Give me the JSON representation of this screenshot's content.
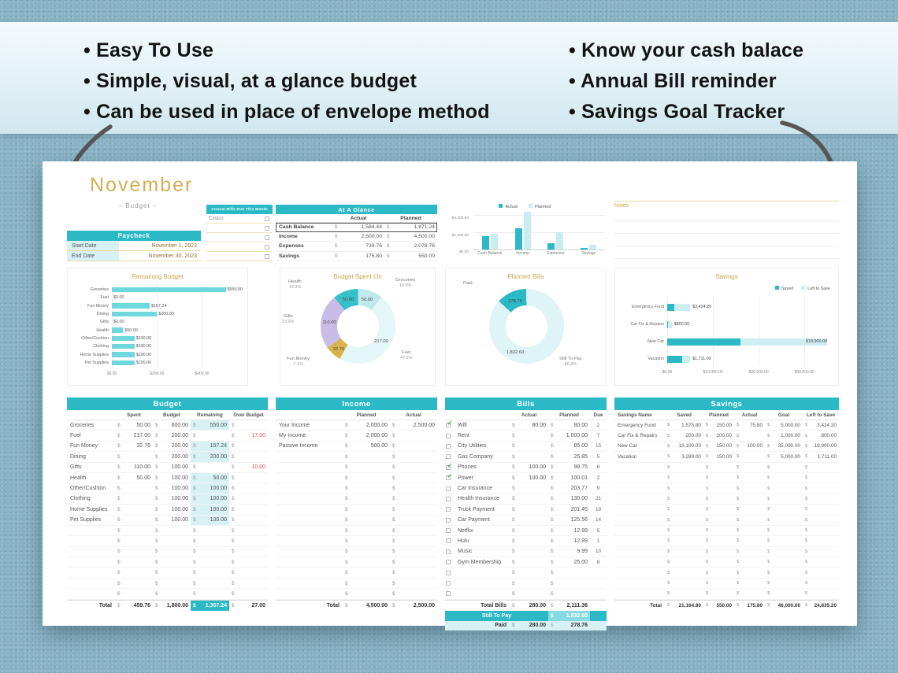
{
  "banner": {
    "left_bullets": [
      "Easy To Use",
      "Simple, visual, at a glance budget",
      "Can be used in place of envelope method"
    ],
    "right_bullets": [
      "Know your cash balace",
      "Annual Bill reminder",
      "Savings Goal Tracker"
    ]
  },
  "colors": {
    "teal": "#2bb9c6",
    "teal_light": "#d7f1f4",
    "gold": "#c9a64d",
    "red": "#e05252",
    "green": "#3aa745",
    "purple": "#c9bce6"
  },
  "sheet": {
    "month": "November",
    "subtitle": "– Budget –",
    "paycheck": {
      "title": "Paycheck",
      "rows": [
        {
          "label": "Start Date",
          "value": "November 1, 2023"
        },
        {
          "label": "End Date",
          "value": "November 30, 2023"
        }
      ]
    },
    "annual_bills": {
      "title": "Annual Bills Due This Month",
      "items": [
        "Costco",
        "",
        "",
        "",
        ""
      ]
    },
    "at_a_glance": {
      "title": "At A Glance",
      "col_actual": "Actual",
      "col_planned": "Planned",
      "rows": [
        {
          "label": "Cash Balance",
          "actual": "1,584.44",
          "planned": "1,871.24"
        },
        {
          "label": "Income",
          "actual": "2,500.00",
          "planned": "4,500.00"
        },
        {
          "label": "Expenses",
          "actual": "739.76",
          "planned": "2,078.76"
        },
        {
          "label": "Savings",
          "actual": "175.80",
          "planned": "550.00"
        }
      ]
    },
    "notes_title": "Notes"
  },
  "chart_data": [
    {
      "name": "at_a_glance_chart",
      "type": "bar",
      "legend": [
        "Actual",
        "Planned"
      ],
      "categories": [
        "Cash Balance",
        "Income",
        "Expenses",
        "Savings"
      ],
      "series": [
        {
          "name": "Actual",
          "values": [
            1584.44,
            2500.0,
            739.76,
            175.8
          ]
        },
        {
          "name": "Planned",
          "values": [
            1871.24,
            4500.0,
            2078.76,
            550.0
          ]
        }
      ],
      "ymax": 4500,
      "yticks": [
        {
          "label": "$4,000.00",
          "value": 4000
        },
        {
          "label": "$2,000.00",
          "value": 2000
        },
        {
          "label": "$0.00",
          "value": 0
        }
      ]
    },
    {
      "name": "remaining_budget",
      "type": "bar",
      "title": "Remaining Budget",
      "categories": [
        "Groceries",
        "Fuel",
        "Fun Money",
        "Dining",
        "Gifts",
        "Health",
        "Other/Cushion",
        "Clothing",
        "Home Supplies",
        "Pet Supplies"
      ],
      "values": [
        550,
        0,
        167.24,
        200,
        0,
        50,
        100,
        100,
        100,
        100
      ],
      "value_labels": [
        "$550.00",
        "$0.00",
        "$167.24",
        "$200.00",
        "$0.00",
        "$50.00",
        "$100.00",
        "$100.00",
        "$100.00",
        "$100.00"
      ],
      "xmax": 580,
      "xticks": [
        {
          "label": "$0.00",
          "value": 0
        },
        {
          "label": "$200.00",
          "value": 200
        },
        {
          "label": "$400.00",
          "value": 400
        }
      ]
    },
    {
      "name": "budget_spent_on",
      "type": "pie",
      "title": "Budget Spent On",
      "slices": [
        {
          "name": "Groceries",
          "value": 50.0,
          "value_label": "50.00",
          "pct": 10.9,
          "pct_label": "10.9%",
          "color": "#bfe9ec"
        },
        {
          "name": "Fuel",
          "value": 217.0,
          "value_label": "217.00",
          "pct": 47.2,
          "pct_label": "47.2%",
          "color": "#e4f6f7"
        },
        {
          "name": "Fun Money",
          "value": 32.76,
          "value_label": "32.76",
          "pct": 7.1,
          "pct_label": "7.1%",
          "color": "#d8b54c"
        },
        {
          "name": "Gifts",
          "value": 110.0,
          "value_label": "110.00",
          "pct": 23.9,
          "pct_label": "23.9%",
          "color": "#c9bce6"
        },
        {
          "name": "Health",
          "value": 50.0,
          "value_label": "50.00",
          "pct": 10.9,
          "pct_label": "10.9%",
          "color": "#35c0ca"
        }
      ]
    },
    {
      "name": "planned_bills",
      "type": "pie",
      "title": "Planned Bills",
      "slices": [
        {
          "name": "Paid",
          "value": 278.76,
          "value_label": "278.76",
          "pct": 13.2,
          "pct_label": "13.2%",
          "color": "#2bb9c6"
        },
        {
          "name": "Still To Pay",
          "value": 1832.6,
          "value_label": "1,832.60",
          "pct": 86.8,
          "pct_label": "86.8%",
          "color": "#dff4f6"
        }
      ]
    },
    {
      "name": "savings_chart",
      "type": "bar",
      "title": "Savings",
      "legend": [
        "Saved",
        "Left to Save"
      ],
      "categories": [
        "Emergency Fund",
        "Car Fix & Repairs",
        "New Car",
        "Vacation"
      ],
      "series": [
        {
          "name": "Saved",
          "values": [
            1575.8,
            200.0,
            16100.0,
            3289.0
          ]
        },
        {
          "name": "Left to Save",
          "values": [
            3424.2,
            800.0,
            18900.0,
            1711.0
          ]
        }
      ],
      "bar_labels": [
        "$3,424.20",
        "$800.00",
        "$18,900.00",
        "$1,711.00"
      ],
      "xmax": 36000,
      "xticks": [
        {
          "label": "$0.00",
          "value": 0
        },
        {
          "label": "$10,000.00",
          "value": 10000
        },
        {
          "label": "$20,000.00",
          "value": 20000
        },
        {
          "label": "$30,000.00",
          "value": 30000
        }
      ]
    }
  ],
  "tables": {
    "budget": {
      "title": "Budget",
      "columns": [
        "",
        "Spent",
        "Budget",
        "Remaining",
        "Over Budget"
      ],
      "rows": [
        [
          "Groceries",
          "50.00",
          "600.00",
          "550.00",
          ""
        ],
        [
          "Fuel",
          "217.00",
          "200.00",
          "",
          "17.00"
        ],
        [
          "Fun Money",
          "32.76",
          "200.00",
          "167.24",
          ""
        ],
        [
          "Dining",
          "",
          "200.00",
          "200.00",
          ""
        ],
        [
          "Gifts",
          "110.00",
          "100.00",
          "",
          "10.00"
        ],
        [
          "Health",
          "50.00",
          "100.00",
          "50.00",
          ""
        ],
        [
          "Other/Cushion",
          "",
          "100.00",
          "100.00",
          ""
        ],
        [
          "Clothing",
          "",
          "100.00",
          "100.00",
          ""
        ],
        [
          "Home Supplies",
          "",
          "100.00",
          "100.00",
          ""
        ],
        [
          "Pet Supplies",
          "",
          "100.00",
          "100.00",
          ""
        ]
      ],
      "empty_rows": 7,
      "total": [
        "Total",
        "459.76",
        "1,800.00",
        "1,367.24",
        "27.00"
      ]
    },
    "income": {
      "title": "Income",
      "columns": [
        "",
        "Planned",
        "Actual"
      ],
      "rows": [
        [
          "Your Income",
          "2,000.00",
          "2,500.00"
        ],
        [
          "My Income",
          "2,000.00",
          ""
        ],
        [
          "Passive Income",
          "500.00",
          ""
        ]
      ],
      "empty_rows": 14,
      "total": [
        "Total",
        "4,500.00",
        "2,500.00"
      ]
    },
    "bills": {
      "title": "Bills",
      "columns": [
        "",
        "Actual",
        "Planned",
        "Due"
      ],
      "rows": [
        {
          "checked": true,
          "name": "Wifi",
          "actual": "80.00",
          "planned": "80.00",
          "due": "2"
        },
        {
          "checked": false,
          "name": "Rent",
          "actual": "",
          "planned": "1,000.00",
          "due": "7"
        },
        {
          "checked": false,
          "name": "City Utilities",
          "actual": "",
          "planned": "85.00",
          "due": "15"
        },
        {
          "checked": false,
          "name": "Gas Company",
          "actual": "",
          "planned": "25.85",
          "due": "5"
        },
        {
          "checked": true,
          "name": "Phones",
          "actual": "100.00",
          "planned": "98.75",
          "due": "6"
        },
        {
          "checked": true,
          "name": "Power",
          "actual": "100.00",
          "planned": "100.01",
          "due": "2"
        },
        {
          "checked": false,
          "name": "Car Insurance",
          "actual": "",
          "planned": "203.77",
          "due": "9"
        },
        {
          "checked": false,
          "name": "Health Insurance",
          "actual": "",
          "planned": "130.00",
          "due": "21"
        },
        {
          "checked": false,
          "name": "Truck Payment",
          "actual": "",
          "planned": "201.45",
          "due": "19"
        },
        {
          "checked": false,
          "name": "Car Payment",
          "actual": "",
          "planned": "125.56",
          "due": "14"
        },
        {
          "checked": false,
          "name": "Netflix",
          "actual": "",
          "planned": "12.99",
          "due": "5"
        },
        {
          "checked": false,
          "name": "Hulu",
          "actual": "",
          "planned": "12.99",
          "due": "1"
        },
        {
          "checked": false,
          "name": "Music",
          "actual": "",
          "planned": "9.99",
          "due": "10"
        },
        {
          "checked": false,
          "name": "Gym Membership",
          "actual": "",
          "planned": "25.00",
          "due": "8"
        }
      ],
      "empty_rows": 3,
      "total_bills": [
        "Total Bills",
        "280.00",
        "2,111.36"
      ],
      "still_to_pay": [
        "Still To Pay",
        "1,832.60"
      ],
      "paid": [
        "Paid",
        "280.00",
        "278.76"
      ]
    },
    "savings": {
      "title": "Savings",
      "columns": [
        "Savings Name",
        "Saved",
        "Planned",
        "Actual",
        "Goal",
        "Left to Save"
      ],
      "rows": [
        [
          "Emergency Fund",
          "1,575.80",
          "150.00",
          "75.80",
          "5,000.00",
          "3,424.20"
        ],
        [
          "Car Fix & Repairs",
          "200.00",
          "100.00",
          "",
          "1,000.00",
          "800.00"
        ],
        [
          "New Car",
          "16,100.00",
          "150.00",
          "100.00",
          "35,000.00",
          "18,900.00"
        ],
        [
          "Vacation",
          "3,289.00",
          "150.00",
          "",
          "5,000.00",
          "1,711.00"
        ]
      ],
      "empty_rows": 13,
      "total": [
        "Total",
        "21,164.80",
        "550.00",
        "175.80",
        "46,000.00",
        "24,835.20"
      ]
    }
  }
}
